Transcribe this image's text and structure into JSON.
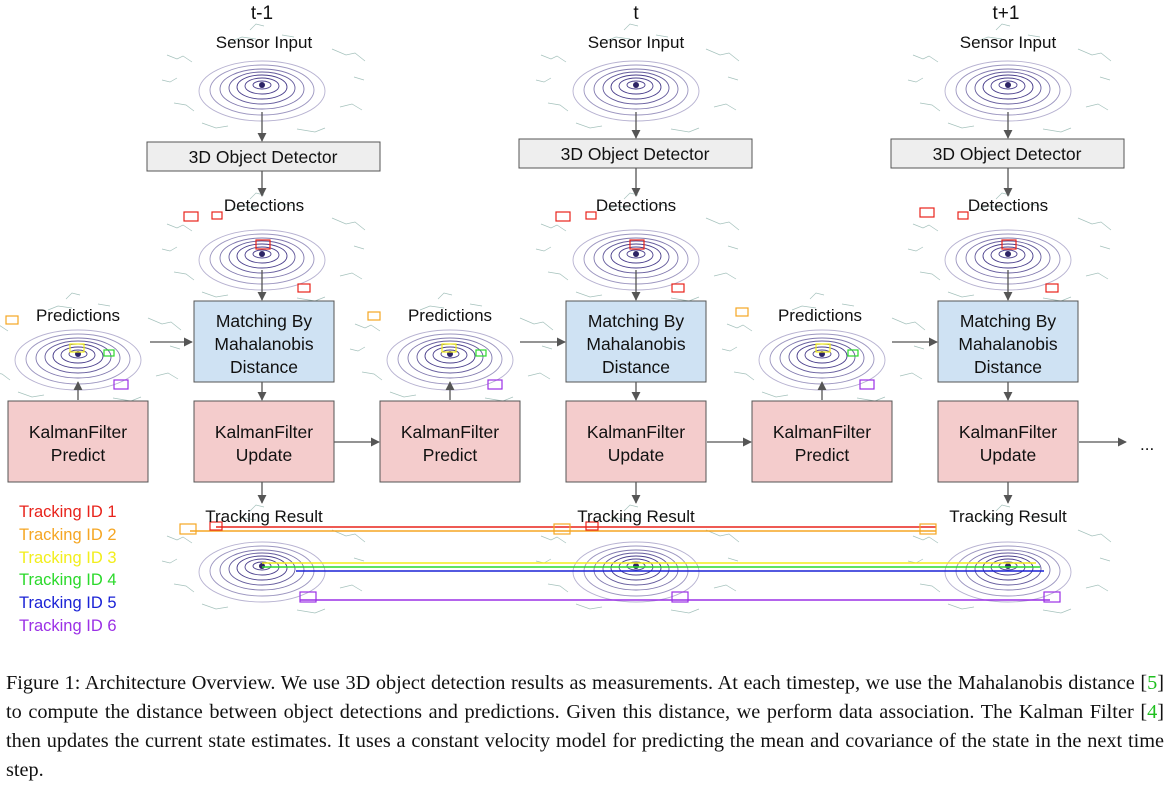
{
  "columns": [
    {
      "time_label": "t-1",
      "sensor_label": "Sensor Input",
      "detector_label": "3D Object Detector",
      "detections_label": "Detections",
      "matching_label": [
        "Matching By",
        "Mahalanobis",
        "Distance"
      ],
      "update_label": [
        "KalmanFilter",
        "Update"
      ],
      "tracking_label": "Tracking Result",
      "predictions_label": "Predictions",
      "predict_label": [
        "KalmanFilter",
        "Predict"
      ]
    },
    {
      "time_label": "t",
      "sensor_label": "Sensor Input",
      "detector_label": "3D Object Detector",
      "detections_label": "Detections",
      "matching_label": [
        "Matching By",
        "Mahalanobis",
        "Distance"
      ],
      "update_label": [
        "KalmanFilter",
        "Update"
      ],
      "tracking_label": "Tracking Result",
      "predictions_label": "Predictions",
      "predict_label": [
        "KalmanFilter",
        "Predict"
      ]
    },
    {
      "time_label": "t+1",
      "sensor_label": "Sensor Input",
      "detector_label": "3D Object Detector",
      "detections_label": "Detections",
      "matching_label": [
        "Matching By",
        "Mahalanobis",
        "Distance"
      ],
      "update_label": [
        "KalmanFilter",
        "Update"
      ],
      "tracking_label": "Tracking Result",
      "predictions_label": "Predictions",
      "predict_label": [
        "KalmanFilter",
        "Predict"
      ]
    }
  ],
  "continuation": "...",
  "legend": [
    {
      "label": "Tracking ID 1",
      "color": "#e8231b"
    },
    {
      "label": "Tracking ID 2",
      "color": "#f5a623"
    },
    {
      "label": "Tracking ID 3",
      "color": "#f2ee1c"
    },
    {
      "label": "Tracking ID 4",
      "color": "#2bd92b"
    },
    {
      "label": "Tracking ID 5",
      "color": "#1a22d6"
    },
    {
      "label": "Tracking ID 6",
      "color": "#9b30e6"
    }
  ],
  "colors": {
    "detector_fill": "#eeeeee",
    "matching_fill": "#cfe2f3",
    "kalman_fill": "#f4cccc",
    "scan_rings": "#4a3f8c",
    "scan_scatter": "#7fa8a0",
    "track_1": "#e8231b",
    "track_2": "#f5a623",
    "track_3": "#f2ee1c",
    "track_4": "#2bd92b",
    "track_5": "#1a22d6",
    "track_6": "#9b30e6"
  },
  "caption": {
    "before_ref1": "Figure 1: Architecture Overview. We use 3D object detection results as measurements. At each timestep, we use the Mahalanobis distance [",
    "ref1": "5",
    "middle": "] to compute the distance between object detections and predictions. Given this distance, we perform data association. The Kalman Filter [",
    "ref2": "4",
    "after_ref2": "] then updates the current state estimates. It uses a constant velocity model for predicting the mean and covariance of the state in the next time step."
  }
}
